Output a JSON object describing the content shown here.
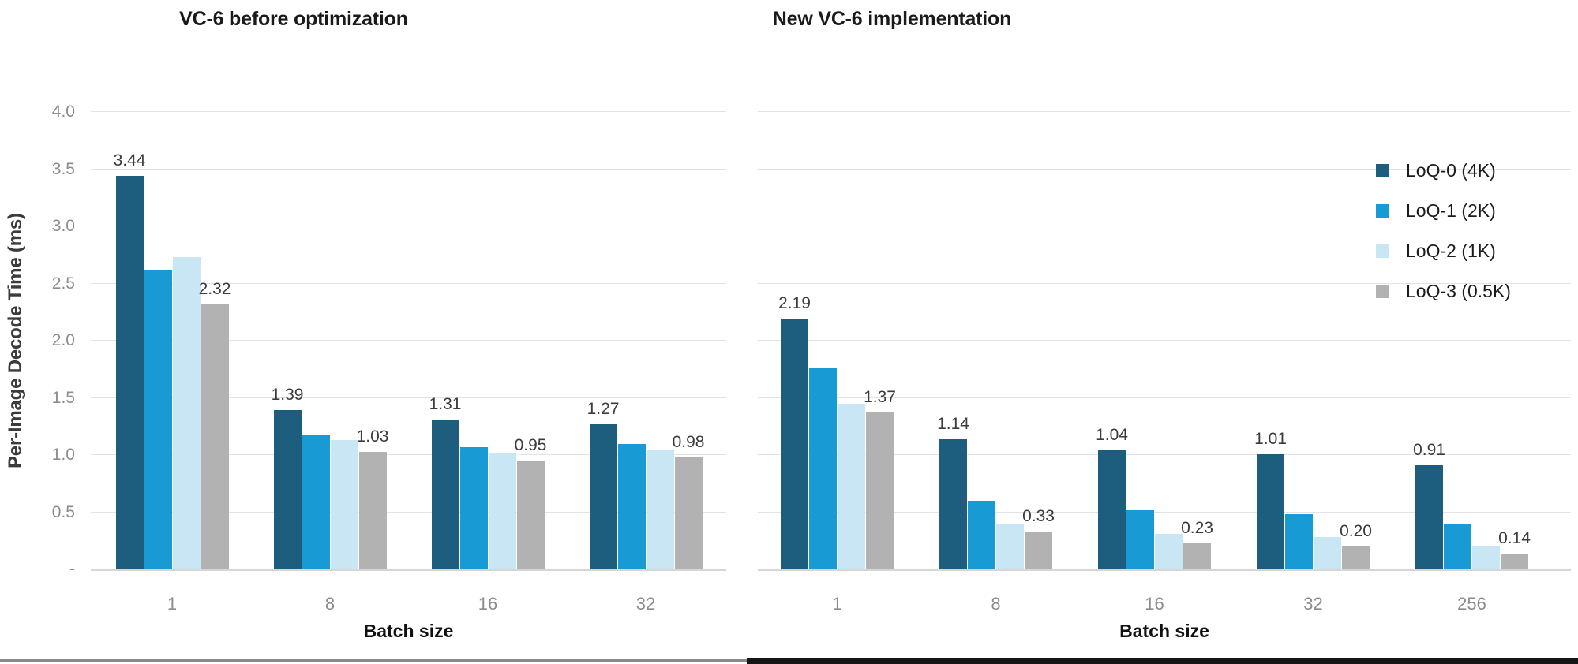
{
  "page": {
    "background": "#ffffff",
    "bottom_strip": {
      "left_color": "#8a8a8a",
      "right_color": "#161616"
    }
  },
  "legend": {
    "items": [
      {
        "label": "LoQ-0 (4K)",
        "color": "#1d5e7e"
      },
      {
        "label": "LoQ-1 (2K)",
        "color": "#189bd5"
      },
      {
        "label": "LoQ-2 (1K)",
        "color": "#c9e6f4"
      },
      {
        "label": "LoQ-3 (0.5K)",
        "color": "#b2b2b2"
      }
    ]
  },
  "chart_data": [
    {
      "type": "bar",
      "title": "VC-6 before optimization",
      "xlabel": "Batch size",
      "ylabel": "Per-Image Decode Time (ms)",
      "ylim": [
        0,
        4
      ],
      "ytick_step": 0.5,
      "ytick_labels": [
        "4.0",
        "3.5",
        "3.0",
        "2.5",
        "2.0",
        "1.5",
        "1.0",
        "0.5",
        "-"
      ],
      "grid": true,
      "legend_position": "none",
      "categories": [
        "1",
        "8",
        "16",
        "32"
      ],
      "series": [
        {
          "name": "LoQ-0 (4K)",
          "color": "#1d5e7e",
          "values": [
            3.44,
            1.39,
            1.31,
            1.27
          ],
          "labels": [
            "3.44",
            "1.39",
            "1.31",
            "1.27"
          ]
        },
        {
          "name": "LoQ-1 (2K)",
          "color": "#189bd5",
          "values": [
            2.62,
            1.17,
            1.07,
            1.1
          ],
          "labels": null
        },
        {
          "name": "LoQ-2 (1K)",
          "color": "#c9e6f4",
          "values": [
            2.73,
            1.13,
            1.02,
            1.05
          ],
          "labels": null
        },
        {
          "name": "LoQ-3 (0.5K)",
          "color": "#b2b2b2",
          "values": [
            2.32,
            1.03,
            0.95,
            0.98
          ],
          "labels": [
            "2.32",
            "1.03",
            "0.95",
            "0.98"
          ]
        }
      ]
    },
    {
      "type": "bar",
      "title": "New VC-6 implementation",
      "xlabel": "Batch size",
      "ylabel": "Per-Image Decode Time (ms)",
      "ylim": [
        0,
        4
      ],
      "ytick_step": 0.5,
      "ytick_labels": null,
      "grid": true,
      "legend_position": "top-right",
      "categories": [
        "1",
        "8",
        "16",
        "32",
        "256"
      ],
      "series": [
        {
          "name": "LoQ-0 (4K)",
          "color": "#1d5e7e",
          "values": [
            2.19,
            1.14,
            1.04,
            1.01,
            0.91
          ],
          "labels": [
            "2.19",
            "1.14",
            "1.04",
            "1.01",
            "0.91"
          ]
        },
        {
          "name": "LoQ-1 (2K)",
          "color": "#189bd5",
          "values": [
            1.76,
            0.6,
            0.52,
            0.48,
            0.39
          ],
          "labels": null
        },
        {
          "name": "LoQ-2 (1K)",
          "color": "#c9e6f4",
          "values": [
            1.45,
            0.4,
            0.31,
            0.28,
            0.21
          ],
          "labels": null
        },
        {
          "name": "LoQ-3 (0.5K)",
          "color": "#b2b2b2",
          "values": [
            1.37,
            0.33,
            0.23,
            0.2,
            0.14
          ],
          "labels": [
            "1.37",
            "0.33",
            "0.23",
            "0.20",
            "0.14"
          ]
        }
      ]
    }
  ]
}
